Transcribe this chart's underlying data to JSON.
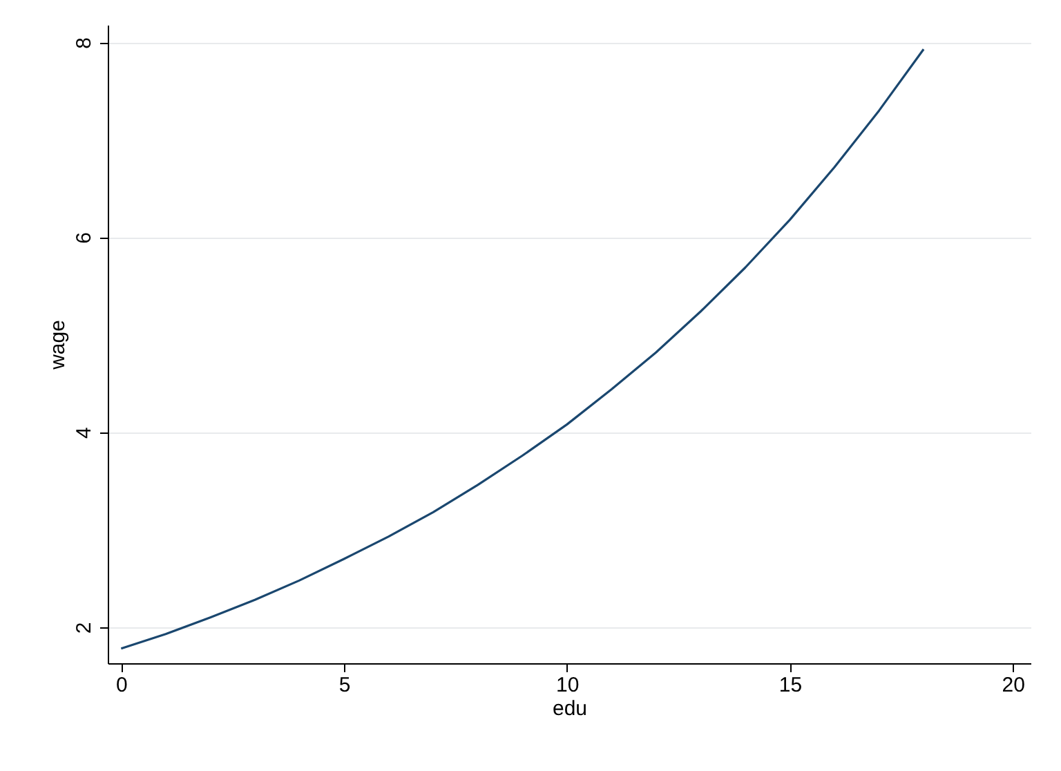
{
  "chart_data": {
    "type": "line",
    "xlabel": "edu",
    "ylabel": "wage",
    "x": [
      0,
      1,
      2,
      3,
      4,
      5,
      6,
      7,
      8,
      9,
      10,
      11,
      12,
      13,
      14,
      15,
      16,
      17,
      18
    ],
    "series": [
      {
        "color": "#1a476f",
        "values": [
          1.78,
          1.93,
          2.1,
          2.28,
          2.48,
          2.7,
          2.93,
          3.18,
          3.46,
          3.76,
          4.08,
          4.44,
          4.82,
          5.24,
          5.69,
          6.18,
          6.72,
          7.3,
          7.93
        ]
      }
    ],
    "xlim": [
      -0.3,
      20.4
    ],
    "ylim": [
      1.63,
      8.18
    ],
    "xticks": [
      0,
      5,
      10,
      15,
      20
    ],
    "yticks": [
      2,
      4,
      6,
      8
    ],
    "grid": "y",
    "marker": "none",
    "line_style": "solid"
  }
}
